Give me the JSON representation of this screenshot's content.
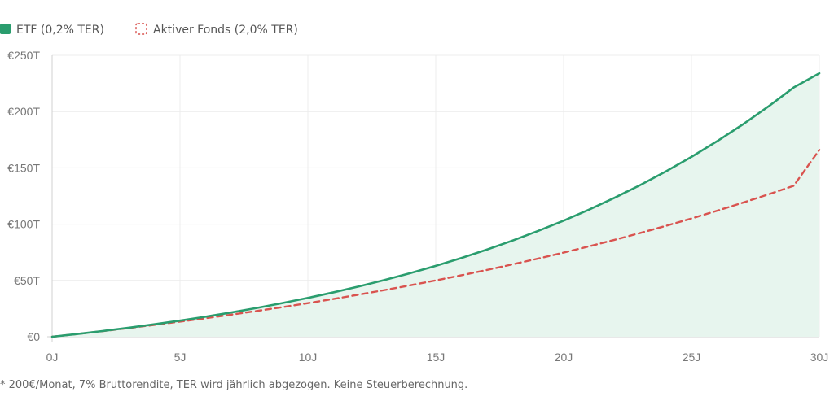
{
  "chart_data": {
    "type": "line",
    "title": "",
    "xlabel": "",
    "ylabel": "",
    "x": [
      0,
      1,
      2,
      3,
      4,
      5,
      6,
      7,
      8,
      9,
      10,
      11,
      12,
      13,
      14,
      15,
      16,
      17,
      18,
      19,
      20,
      21,
      22,
      23,
      24,
      25,
      26,
      27,
      28,
      29,
      30
    ],
    "x_ticks": [
      "0J",
      "5J",
      "10J",
      "15J",
      "20J",
      "25J",
      "30J"
    ],
    "x_tick_values": [
      0,
      5,
      10,
      15,
      20,
      25,
      30
    ],
    "y_ticks": [
      "€0",
      "€50T",
      "€100T",
      "€150T",
      "€200T",
      "€250T"
    ],
    "y_tick_values": [
      0,
      50000,
      100000,
      150000,
      200000,
      250000
    ],
    "xlim": [
      0,
      30
    ],
    "ylim": [
      0,
      250000
    ],
    "grid": true,
    "legend_position": "top-left",
    "series": [
      {
        "name": "ETF (0,2% TER)",
        "color": "#2a9d6e",
        "style": "solid",
        "fill": "#e7f5ee",
        "values": [
          0,
          2480,
          5140,
          7990,
          11040,
          14310,
          17810,
          21560,
          25580,
          29880,
          34490,
          39430,
          44720,
          50390,
          56460,
          62960,
          69930,
          77390,
          85390,
          93960,
          103130,
          112960,
          123490,
          134770,
          146850,
          159790,
          173650,
          188490,
          204390,
          221420,
          234000
        ]
      },
      {
        "name": "Aktiver Fonds (2,0% TER)",
        "color": "#d9534f",
        "style": "dashed",
        "values": [
          0,
          2460,
          5030,
          7710,
          10500,
          13400,
          16430,
          19580,
          22870,
          26290,
          29850,
          33560,
          37430,
          41460,
          45650,
          50020,
          54570,
          59310,
          64250,
          69390,
          74740,
          80320,
          86130,
          92180,
          98480,
          105050,
          111880,
          119000,
          126410,
          134130,
          166000
        ]
      }
    ]
  },
  "footnote": "* 200€/Monat, 7% Bruttorendite, TER wird jährlich abgezogen. Keine Steuerberechnung."
}
